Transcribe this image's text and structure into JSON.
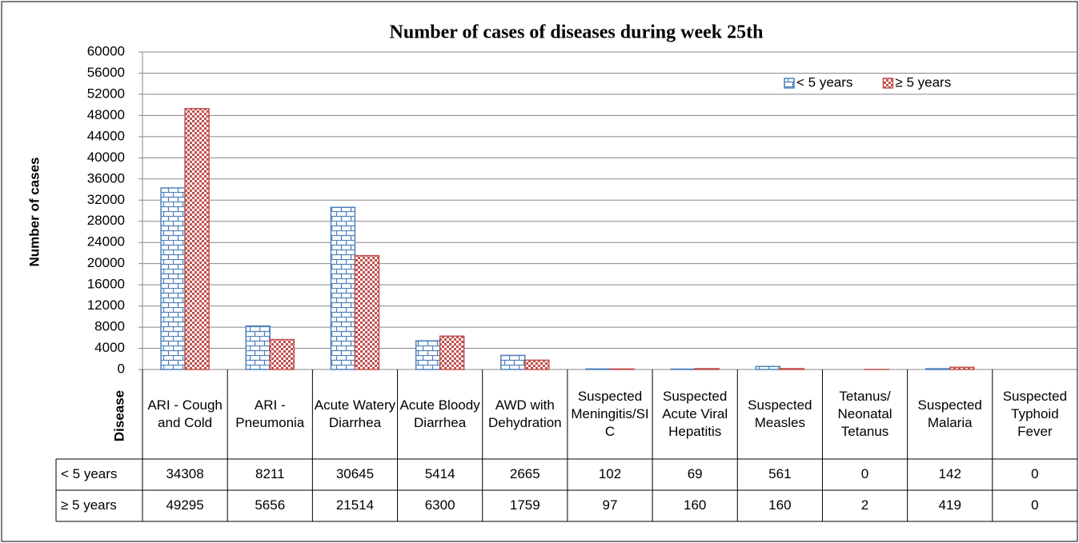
{
  "chart_data": {
    "type": "bar",
    "title": "Number of cases of diseases during week 25th",
    "y_label": "Number of cases",
    "x_label": "Disease",
    "categories": [
      "ARI - Cough and Cold",
      "ARI - Pneumonia",
      "Acute Watery Diarrhea",
      "Acute Bloody Diarrhea",
      "AWD with Dehydration",
      "Suspected Meningitis/SIC",
      "Suspected Acute Viral Hepatitis",
      "Suspected Measles",
      "Tetanus/ Neonatal Tetanus",
      "Suspected Malaria",
      "Suspected Typhoid Fever"
    ],
    "series": [
      {
        "name": "< 5 years",
        "color": "#4f81bd",
        "values": [
          34308,
          8211,
          30645,
          5414,
          2665,
          102,
          69,
          561,
          0,
          142,
          0
        ]
      },
      {
        "name": "≥ 5 years",
        "color": "#c0504d",
        "values": [
          49295,
          5656,
          21514,
          6300,
          1759,
          97,
          160,
          160,
          2,
          419,
          0
        ]
      }
    ],
    "ylim": [
      0,
      60000
    ],
    "yticks": [
      0,
      4000,
      8000,
      12000,
      16000,
      20000,
      24000,
      28000,
      32000,
      36000,
      40000,
      44000,
      48000,
      52000,
      56000,
      60000
    ],
    "grid": true,
    "legend": "top-right",
    "data_table": true
  }
}
